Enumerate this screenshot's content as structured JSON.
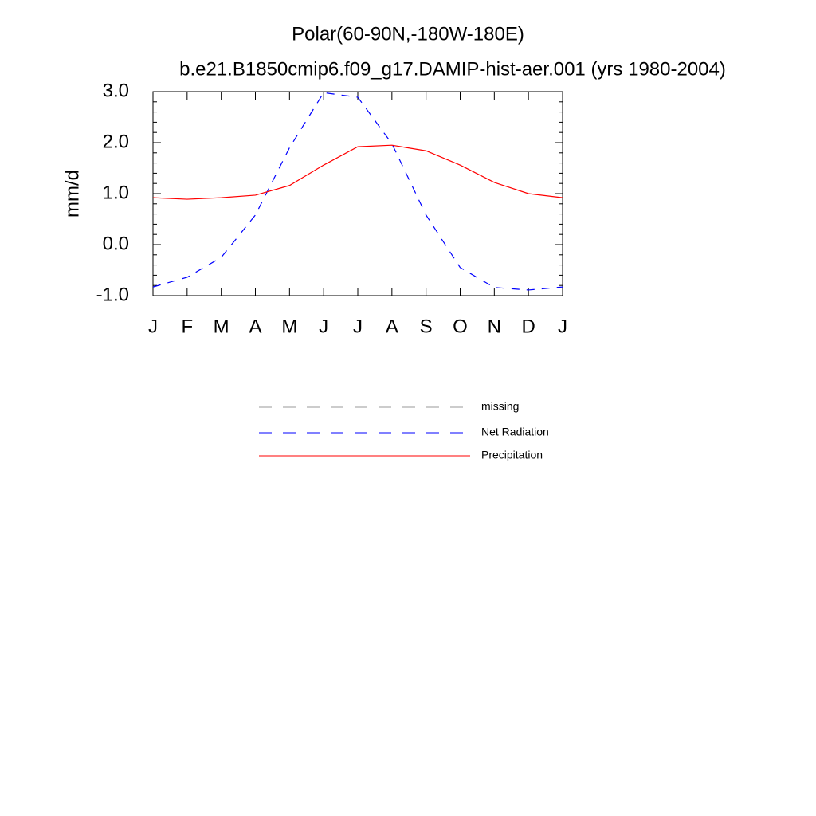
{
  "chart_data": {
    "type": "line",
    "title": "Polar(60-90N,-180W-180E)",
    "subtitle": "b.e21.B1850cmip6.f09_g17.DAMIP-hist-aer.001 (yrs 1980-2004)",
    "y_label": "mm/d",
    "categories": [
      "J",
      "F",
      "M",
      "A",
      "M",
      "J",
      "J",
      "A",
      "S",
      "O",
      "N",
      "D",
      "J"
    ],
    "series": [
      {
        "name": "missing",
        "color": "#999999",
        "dash": true,
        "values": [
          null,
          null,
          null,
          null,
          null,
          null,
          null,
          null,
          null,
          null,
          null,
          null,
          null
        ]
      },
      {
        "name": "Net Radiation",
        "color": "#0000ff",
        "dash": true,
        "values": [
          -0.83,
          -0.64,
          -0.25,
          0.58,
          1.9,
          2.98,
          2.89,
          1.98,
          0.58,
          -0.45,
          -0.84,
          -0.89,
          -0.83
        ]
      },
      {
        "name": "Precipitation",
        "color": "#ff0000",
        "dash": false,
        "values": [
          0.92,
          0.89,
          0.92,
          0.97,
          1.16,
          1.56,
          1.92,
          1.95,
          1.84,
          1.56,
          1.22,
          1.0,
          0.92
        ]
      }
    ],
    "ylim": [
      -1,
      3
    ],
    "yticks": [
      {
        "value": -1,
        "label": "-1.0"
      },
      {
        "value": 0,
        "label": "0.0"
      },
      {
        "value": 1,
        "label": "1.0"
      },
      {
        "value": 2,
        "label": "2.0"
      },
      {
        "value": 3,
        "label": "3.0"
      }
    ],
    "grid": false
  }
}
